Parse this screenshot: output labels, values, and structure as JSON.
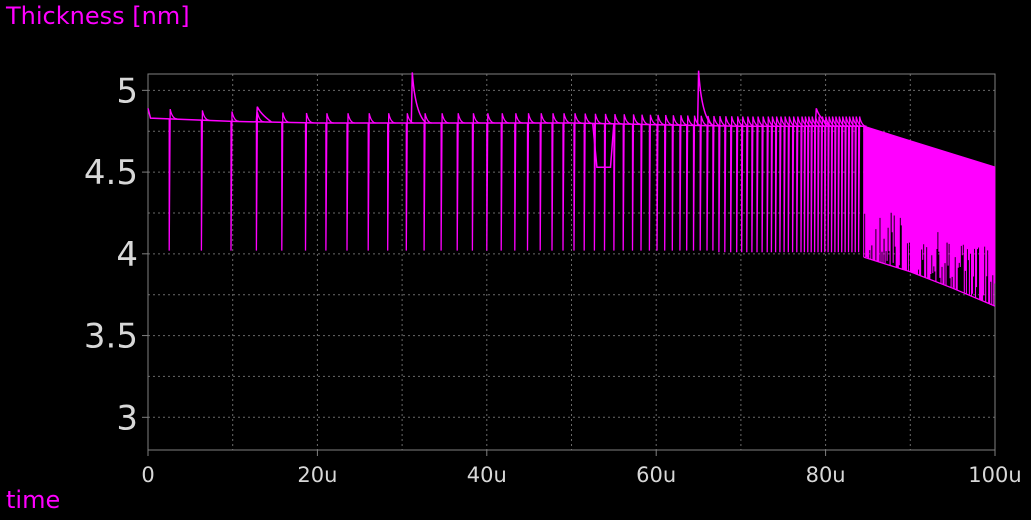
{
  "chart_data": {
    "type": "line",
    "ylabel": "Thickness [nm]",
    "xlabel": "time",
    "xlim": [
      0,
      100
    ],
    "ylim": [
      2.8,
      5.1
    ],
    "x_ticks": [
      0,
      20,
      40,
      60,
      80,
      100
    ],
    "x_tick_labels": [
      "0",
      "20u",
      "40u",
      "60u",
      "80u",
      "100u"
    ],
    "y_ticks": [
      3,
      3.5,
      4,
      4.5,
      5
    ],
    "y_tick_labels": [
      "3",
      "3.5",
      "4",
      "4.5",
      "5"
    ],
    "grid": true,
    "colors": {
      "line": "#ff00ff",
      "axes": "#808080",
      "grid": "#6a6a6a",
      "tick_text": "#d8d8d8",
      "background": "#000000"
    },
    "series": [
      {
        "baseline": [
          [
            0,
            4.89
          ],
          [
            0.3,
            4.83
          ],
          [
            10,
            4.81
          ],
          [
            20,
            4.8
          ],
          [
            30,
            4.8
          ],
          [
            40,
            4.8
          ],
          [
            50,
            4.8
          ],
          [
            60,
            4.79
          ],
          [
            70,
            4.78
          ],
          [
            80,
            4.78
          ],
          [
            84.5,
            4.78
          ],
          [
            90,
            4.69
          ],
          [
            95,
            4.61
          ],
          [
            100,
            4.53
          ]
        ],
        "lower_envelope": [
          [
            84.5,
            3.98
          ],
          [
            90,
            3.89
          ],
          [
            95,
            3.79
          ],
          [
            100,
            3.68
          ]
        ],
        "spikes_down": [
          [
            2.5,
            4.02
          ],
          [
            6.3,
            4.02
          ],
          [
            9.8,
            4.02
          ],
          [
            12.8,
            4.02
          ],
          [
            15.8,
            4.02
          ],
          [
            18.6,
            4.02
          ],
          [
            21.0,
            4.02
          ],
          [
            23.5,
            4.02
          ],
          [
            26.0,
            4.02
          ],
          [
            28.3,
            4.02
          ],
          [
            30.5,
            4.02
          ],
          [
            32.6,
            4.02
          ],
          [
            34.6,
            4.02
          ],
          [
            36.5,
            4.02
          ],
          [
            38.3,
            4.02
          ],
          [
            40.0,
            4.02
          ],
          [
            41.7,
            4.02
          ],
          [
            43.3,
            4.02
          ],
          [
            44.8,
            4.02
          ],
          [
            46.3,
            4.02
          ],
          [
            47.7,
            4.02
          ],
          [
            49.0,
            4.02
          ],
          [
            50.3,
            4.02
          ],
          [
            51.5,
            4.02
          ],
          [
            52.7,
            4.02
          ],
          [
            53.9,
            4.02
          ],
          [
            55.0,
            4.02
          ],
          [
            56.1,
            4.02
          ],
          [
            57.2,
            4.02
          ],
          [
            58.2,
            4.02
          ],
          [
            59.2,
            4.02
          ],
          [
            60.1,
            4.02
          ],
          [
            61.0,
            4.02
          ],
          [
            61.9,
            4.02
          ],
          [
            62.8,
            4.02
          ],
          [
            63.6,
            4.02
          ],
          [
            64.4,
            4.02
          ],
          [
            65.2,
            4.02
          ],
          [
            66.0,
            4.02
          ],
          [
            66.7,
            4.02
          ],
          [
            67.4,
            4.01
          ],
          [
            68.1,
            4.01
          ],
          [
            68.8,
            4.01
          ],
          [
            69.5,
            4.01
          ],
          [
            70.1,
            4.01
          ],
          [
            70.7,
            4.01
          ],
          [
            71.3,
            4.01
          ],
          [
            71.9,
            4.01
          ],
          [
            72.5,
            4.01
          ],
          [
            73.1,
            4.01
          ],
          [
            73.6,
            4.01
          ],
          [
            74.1,
            4.01
          ],
          [
            74.6,
            4.01
          ],
          [
            75.1,
            4.01
          ],
          [
            75.6,
            4.01
          ],
          [
            76.1,
            4.01
          ],
          [
            76.6,
            4.01
          ],
          [
            77.1,
            4.01
          ],
          [
            77.5,
            4.01
          ],
          [
            77.9,
            4.01
          ],
          [
            78.3,
            4.01
          ],
          [
            78.7,
            4.01
          ],
          [
            79.1,
            4.01
          ],
          [
            79.5,
            4.01
          ],
          [
            79.9,
            4.01
          ],
          [
            80.3,
            4.01
          ],
          [
            80.7,
            4.01
          ],
          [
            81.1,
            4.01
          ],
          [
            81.5,
            4.01
          ],
          [
            81.9,
            4.01
          ],
          [
            82.3,
            4.01
          ],
          [
            82.7,
            4.01
          ],
          [
            83.1,
            4.01
          ],
          [
            83.5,
            4.01
          ],
          [
            83.9,
            4.01
          ]
        ],
        "spikes_up": [
          [
            31.2,
            5.11
          ],
          [
            65.0,
            5.12
          ],
          [
            12.9,
            4.9
          ],
          [
            78.9,
            4.89
          ]
        ],
        "dip": [
          [
            52.5,
            4.8
          ],
          [
            53.0,
            4.53
          ],
          [
            54.6,
            4.53
          ],
          [
            55.0,
            4.8
          ]
        ]
      }
    ]
  }
}
